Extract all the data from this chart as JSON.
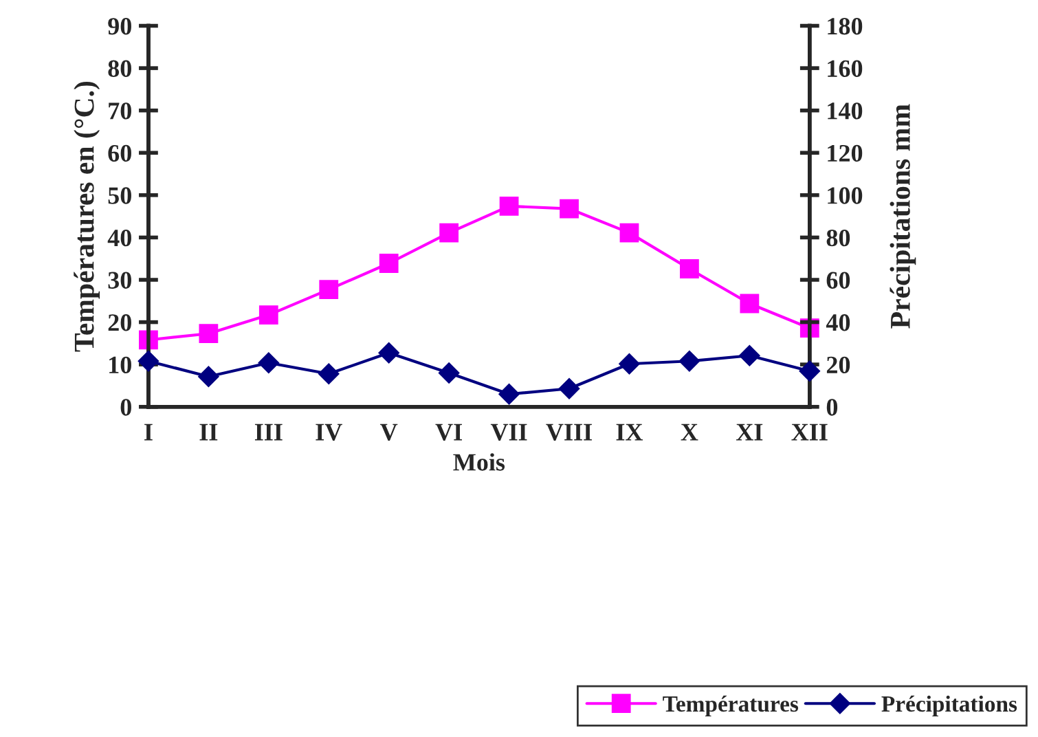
{
  "chart_data": {
    "type": "line",
    "xlabel": "Mois",
    "ylabel": "Températures en (°C.)",
    "y2label": "Précipitations mm",
    "categories": [
      "I",
      "II",
      "III",
      "IV",
      "V",
      "VI",
      "VII",
      "VIII",
      "IX",
      "X",
      "XI",
      "XII"
    ],
    "series": [
      {
        "name": "Températures",
        "color": "#ff00ff",
        "marker": "square",
        "values": [
          15.8,
          17.3,
          21.7,
          27.7,
          33.9,
          41.1,
          47.4,
          46.8,
          41.1,
          32.6,
          24.4,
          18.6
        ]
      },
      {
        "name": "Précipitations",
        "color": "#000080",
        "marker": "diamond",
        "axis": "y2",
        "values": [
          21.6,
          14.3,
          20.8,
          15.6,
          25.5,
          16,
          6,
          8.6,
          20.3,
          21.6,
          24.2,
          16.9
        ]
      }
    ],
    "ylim": [
      0,
      90
    ],
    "yticks": [
      0,
      10,
      20,
      30,
      40,
      50,
      60,
      70,
      80,
      90
    ],
    "y2lim": [
      0,
      180
    ],
    "y2ticks": [
      0,
      20,
      40,
      60,
      80,
      100,
      120,
      140,
      160,
      180
    ],
    "grid": false,
    "legend": "bottom right"
  }
}
